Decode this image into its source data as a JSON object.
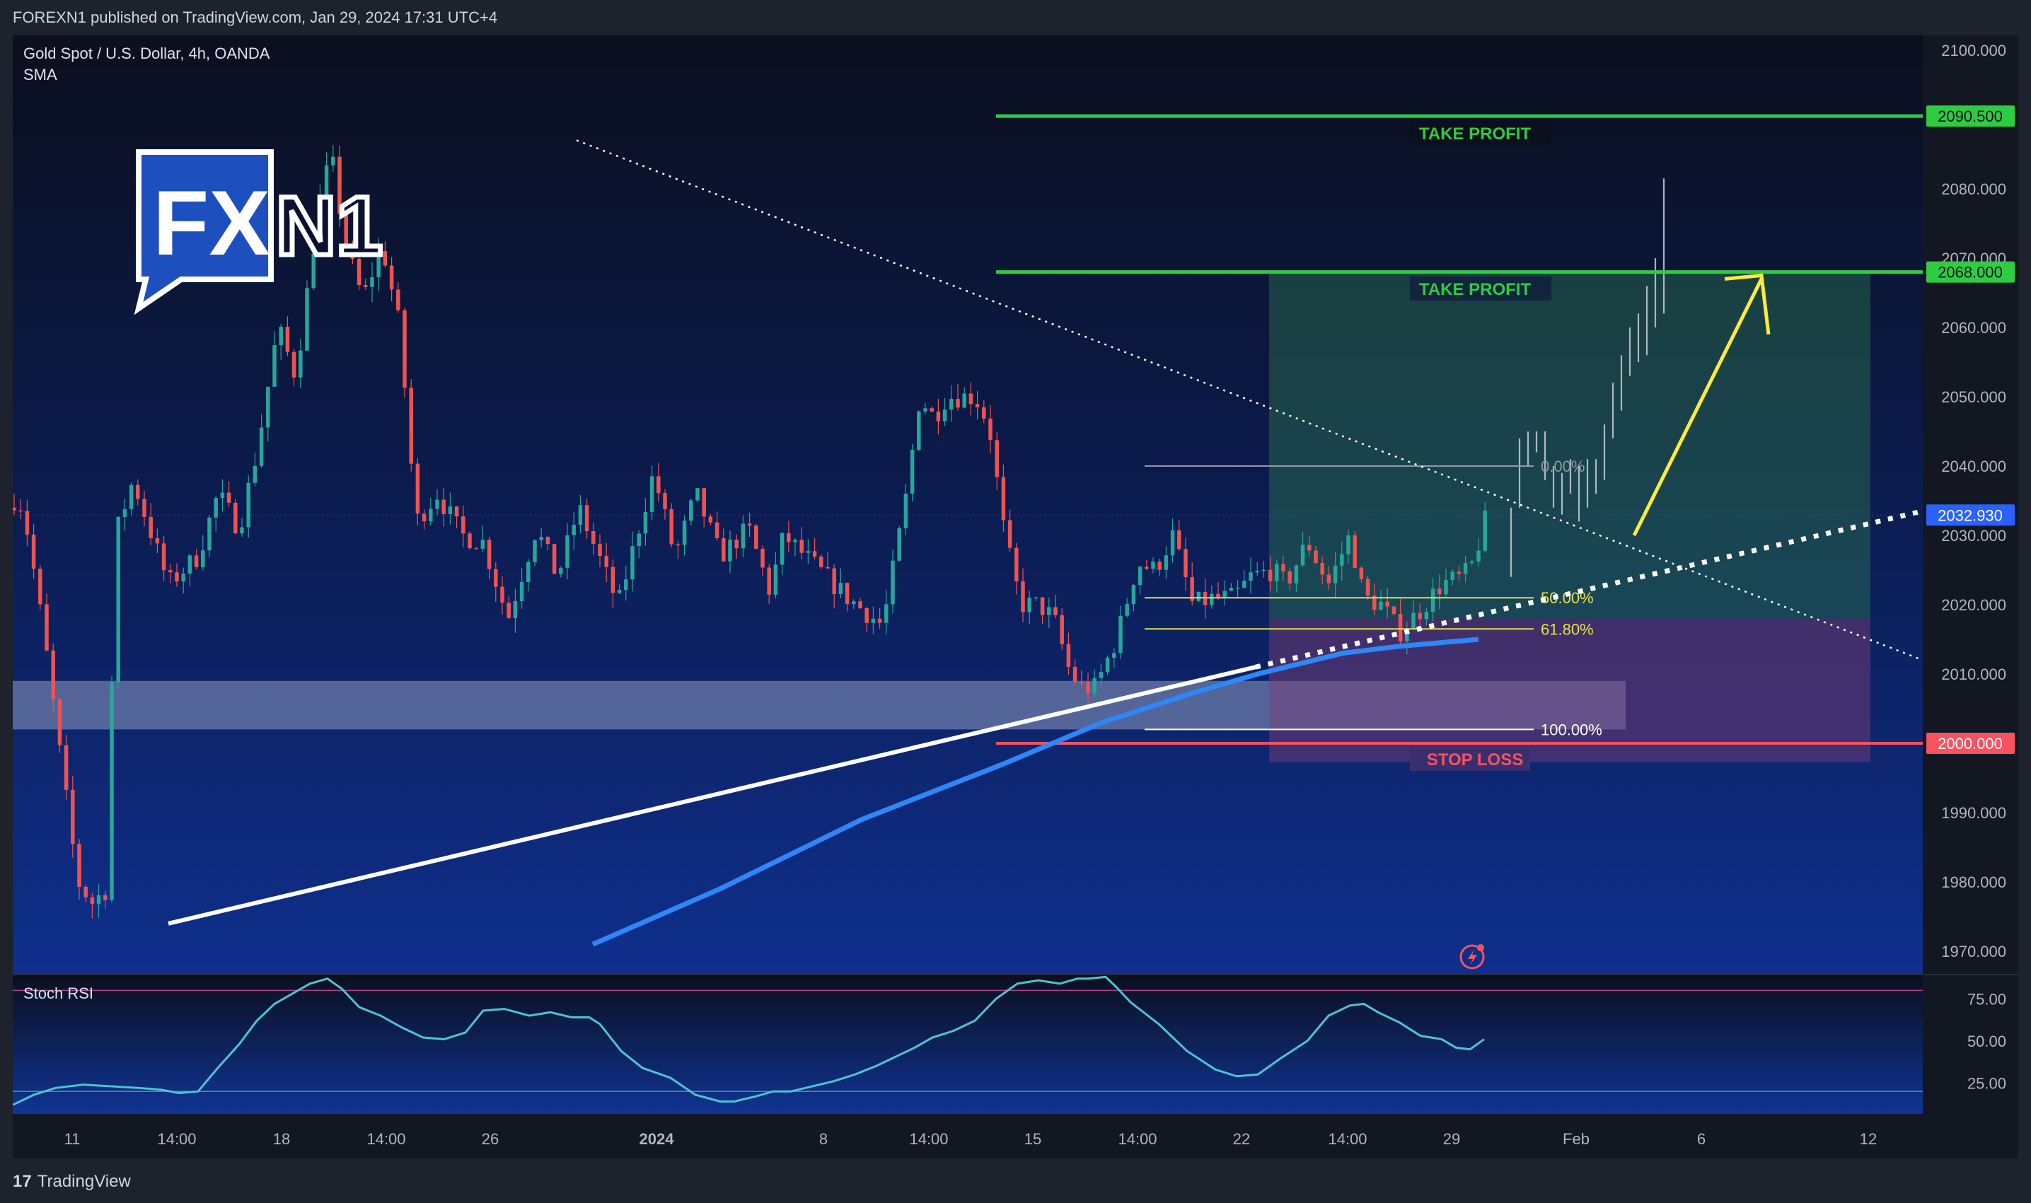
{
  "header": {
    "published": "FOREXN1 published on TradingView.com, Jan 29, 2024 17:31 UTC+4"
  },
  "footer": {
    "logo_glyph": "17",
    "brand": "TradingView"
  },
  "main_pane": {
    "symbol_title": "Gold Spot / U.S. Dollar, 4h, OANDA",
    "indicator": "SMA",
    "watermark": "FXN1"
  },
  "indicator_pane": {
    "title": "Stoch RSI",
    "y_ticks": [
      75,
      50,
      25
    ],
    "y_tick_labels": [
      "75.00",
      "50.00",
      "25.00"
    ],
    "bands": {
      "upper": 80,
      "lower": 20
    }
  },
  "annotations": {
    "tp1_label": "TAKE PROFIT",
    "tp2_label": "TAKE PROFIT",
    "sl_label": "STOP LOSS"
  },
  "colors": {
    "background_top": "#0b0f1e",
    "background_bottom": "#0f2f8c",
    "up_candle": "#26a69a",
    "down_candle": "#ef5350",
    "take_profit": "#2ecc40",
    "stop_loss": "#f7525f",
    "sma": "#2f86f6",
    "fib_yellow": "#e6e14a",
    "arrow": "#ffeb3b",
    "stoch": "#4fc3d0",
    "price_box": "#2962ff"
  },
  "chart_data": {
    "type": "candlestick",
    "ylim": [
      1970,
      2100
    ],
    "y_ticks": [
      2100,
      2090,
      2080,
      2070,
      2060,
      2050,
      2040,
      2030,
      2020,
      2010,
      2000,
      1990,
      1980,
      1970
    ],
    "y_tick_labels": [
      "2100.000",
      "2080.000",
      "2070.000",
      "2060.000",
      "2050.000",
      "2040.000",
      "2030.000",
      "2020.000",
      "2010.000",
      "2000.000",
      "1990.000",
      "1980.000",
      "1970.000"
    ],
    "x_tick_labels": [
      "11",
      "14:00",
      "18",
      "14:00",
      "26",
      "2024",
      "8",
      "14:00",
      "15",
      "14:00",
      "22",
      "14:00",
      "29",
      "Feb",
      "6",
      "12"
    ],
    "price_labels": [
      {
        "value": 2090.5,
        "text": "2090.500",
        "role": "take-profit"
      },
      {
        "value": 2068.0,
        "text": "2068.000",
        "role": "take-profit"
      },
      {
        "value": 2032.93,
        "text": "2032.930",
        "role": "last-price"
      },
      {
        "value": 2000.0,
        "text": "2000.000",
        "role": "stop-loss"
      }
    ],
    "fibonacci": {
      "levels": [
        {
          "ratio_label": "0.00%",
          "price": 2040.0
        },
        {
          "ratio_label": "50.00%",
          "price": 2021.0
        },
        {
          "ratio_label": "61.80%",
          "price": 2016.5
        },
        {
          "ratio_label": "100.00%",
          "price": 2002.0
        }
      ]
    },
    "projection": {
      "bar_count": 11,
      "target": 2068.0,
      "peak": 2081.5
    }
  }
}
